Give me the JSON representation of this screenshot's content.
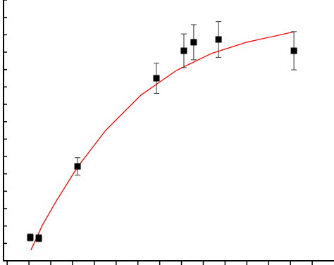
{
  "chart_data": {
    "type": "scatter",
    "x": [
      1.06,
      1.45,
      3.23,
      6.85,
      8.11,
      8.56,
      9.7,
      13.16
    ],
    "values": [
      1.34,
      1.3,
      5.43,
      10.5,
      12.08,
      12.57,
      12.73,
      12.08
    ],
    "errors": [
      0.2,
      0.2,
      0.5,
      0.87,
      0.97,
      1.01,
      1.03,
      1.1
    ],
    "color": "#000000",
    "fit": {
      "color": "#ff0000",
      "x": [
        1.09,
        1.61,
        2.26,
        3.23,
        4.52,
        6.14,
        7.76,
        9.37,
        10.99,
        13.16
      ],
      "values": [
        0.61,
        2.03,
        3.45,
        5.39,
        7.5,
        9.53,
        10.94,
        11.92,
        12.57,
        13.17
      ]
    },
    "xlim": [
      -0.2,
      15
    ],
    "ylim": [
      0,
      15
    ],
    "xticks": [
      0,
      1,
      2,
      3,
      4,
      5,
      6,
      7,
      8,
      9,
      10,
      11,
      12,
      13,
      14
    ],
    "yticks": [
      0,
      1,
      2,
      3,
      4,
      5,
      6,
      7,
      8,
      9,
      10,
      11,
      12,
      13,
      14,
      15
    ]
  }
}
